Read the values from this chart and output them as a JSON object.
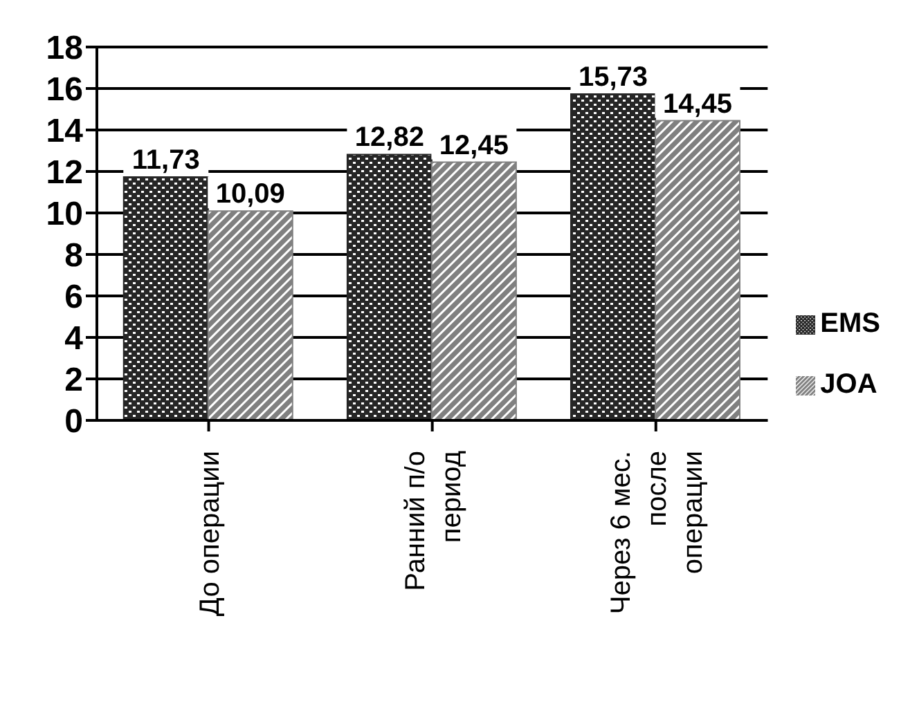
{
  "chart_data": {
    "type": "bar",
    "categories": [
      "До операции",
      "Ранний п/о период",
      "Через 6 мес. после операции"
    ],
    "series": [
      {
        "name": "EMS",
        "color": "#262626",
        "values": [
          11.73,
          12.82,
          15.73
        ],
        "value_labels": [
          "11,73",
          "12,82",
          "15,73"
        ]
      },
      {
        "name": "JOA",
        "color": "#808080",
        "values": [
          10.09,
          12.45,
          14.45
        ],
        "value_labels": [
          "10,09",
          "12,45",
          "14,45"
        ]
      }
    ],
    "ylim": [
      0,
      18
    ],
    "yticks": [
      0,
      2,
      4,
      6,
      8,
      10,
      12,
      14,
      16,
      18
    ],
    "grid": "y",
    "legend": "right"
  }
}
